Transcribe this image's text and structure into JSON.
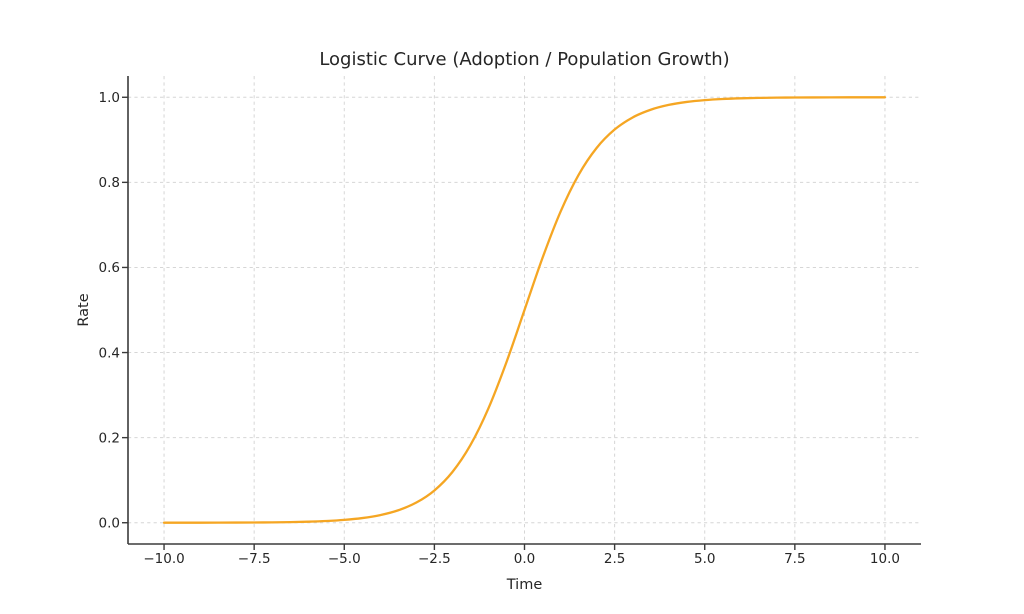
{
  "figure": {
    "title": "Logistic Curve (Adoption / Population Growth)",
    "xlabel": "Time",
    "ylabel": "Rate"
  },
  "colors": {
    "background": "#ffffff",
    "text": "#262626",
    "spine": "#3b3b3b",
    "grid": "#d6d6d6",
    "curve": "#F5A623"
  },
  "chart_data": {
    "type": "line",
    "title": "Logistic Curve (Adoption / Population Growth)",
    "xlabel": "Time",
    "ylabel": "Rate",
    "xlim": [
      -11,
      11
    ],
    "ylim": [
      -0.05,
      1.05
    ],
    "grid": true,
    "grid_style": "dashed",
    "legend_position": "none",
    "line_color": "#F5A623",
    "xticks": [
      -10,
      -7.5,
      -5,
      -2.5,
      0,
      2.5,
      5,
      7.5,
      10
    ],
    "xtick_labels": [
      "−10.0",
      "−7.5",
      "−5.0",
      "−2.5",
      "0.0",
      "2.5",
      "5.0",
      "7.5",
      "10.0"
    ],
    "yticks": [
      0,
      0.2,
      0.4,
      0.6,
      0.8,
      1.0
    ],
    "ytick_labels": [
      "0.0",
      "0.2",
      "0.4",
      "0.6",
      "0.8",
      "1.0"
    ],
    "x": [
      -10,
      -9.5,
      -9,
      -8.5,
      -8,
      -7.5,
      -7,
      -6.5,
      -6,
      -5.5,
      -5,
      -4.5,
      -4,
      -3.5,
      -3,
      -2.5,
      -2,
      -1.5,
      -1,
      -0.5,
      0,
      0.5,
      1,
      1.5,
      2,
      2.5,
      3,
      3.5,
      4,
      4.5,
      5,
      5.5,
      6,
      6.5,
      7,
      7.5,
      8,
      8.5,
      9,
      9.5,
      10
    ],
    "y": [
      4.5e-05,
      7.5e-05,
      0.000123,
      0.000203,
      0.000335,
      0.000553,
      0.000911,
      0.001503,
      0.002473,
      0.00407,
      0.006693,
      0.010987,
      0.017986,
      0.029312,
      0.047426,
      0.075858,
      0.119203,
      0.182426,
      0.268941,
      0.377541,
      0.5,
      0.622459,
      0.731059,
      0.817574,
      0.880797,
      0.924142,
      0.952574,
      0.970688,
      0.982014,
      0.989013,
      0.993307,
      0.99593,
      0.997527,
      0.998497,
      0.999089,
      0.999447,
      0.999665,
      0.999797,
      0.999877,
      0.999925,
      0.999955
    ]
  }
}
